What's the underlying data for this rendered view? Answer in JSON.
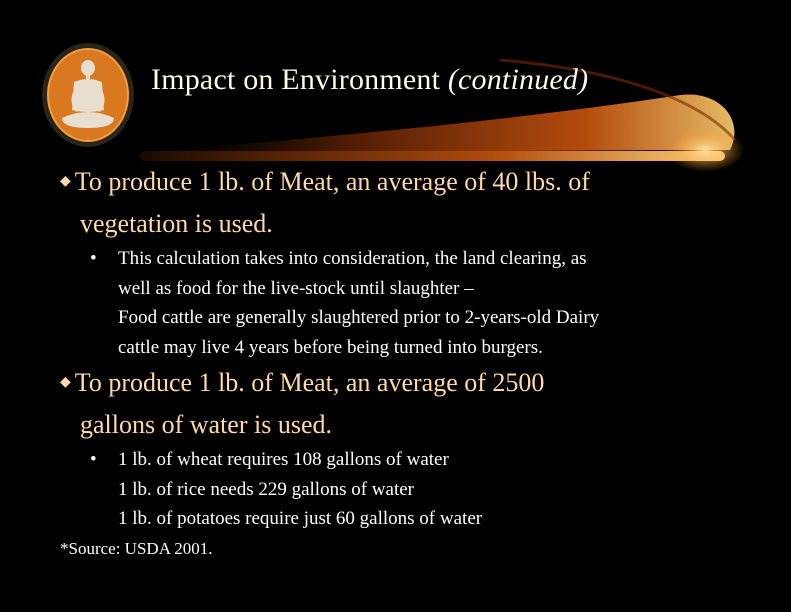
{
  "title": {
    "main": "Impact on Environment ",
    "italic": "(continued)"
  },
  "logo": {
    "icon": "meditating-buddha-icon",
    "color": "#d9781f"
  },
  "bullets": [
    {
      "lines": [
        "To produce 1 lb. of Meat, an average of 40 lbs. of",
        "vegetation is used."
      ],
      "sub": [
        "This calculation takes into consideration, the land clearing, as",
        "well as food for the live-stock until slaughter –",
        "Food cattle are generally slaughtered prior to 2-years-old Dairy",
        "cattle may live 4 years before being turned into burgers."
      ]
    },
    {
      "lines": [
        "To produce 1 lb. of Meat, an average of 2500",
        "gallons of water is used."
      ],
      "sub": [
        "1 lb. of wheat requires 108 gallons of water",
        "1 lb. of rice needs 229 gallons of water",
        "1 lb. of potatoes require just 60 gallons of water"
      ]
    }
  ],
  "source": "*Source: USDA  2001.",
  "colors": {
    "background": "#000000",
    "heading": "#ffd9a6",
    "swoosh": "#ff8c1a"
  }
}
